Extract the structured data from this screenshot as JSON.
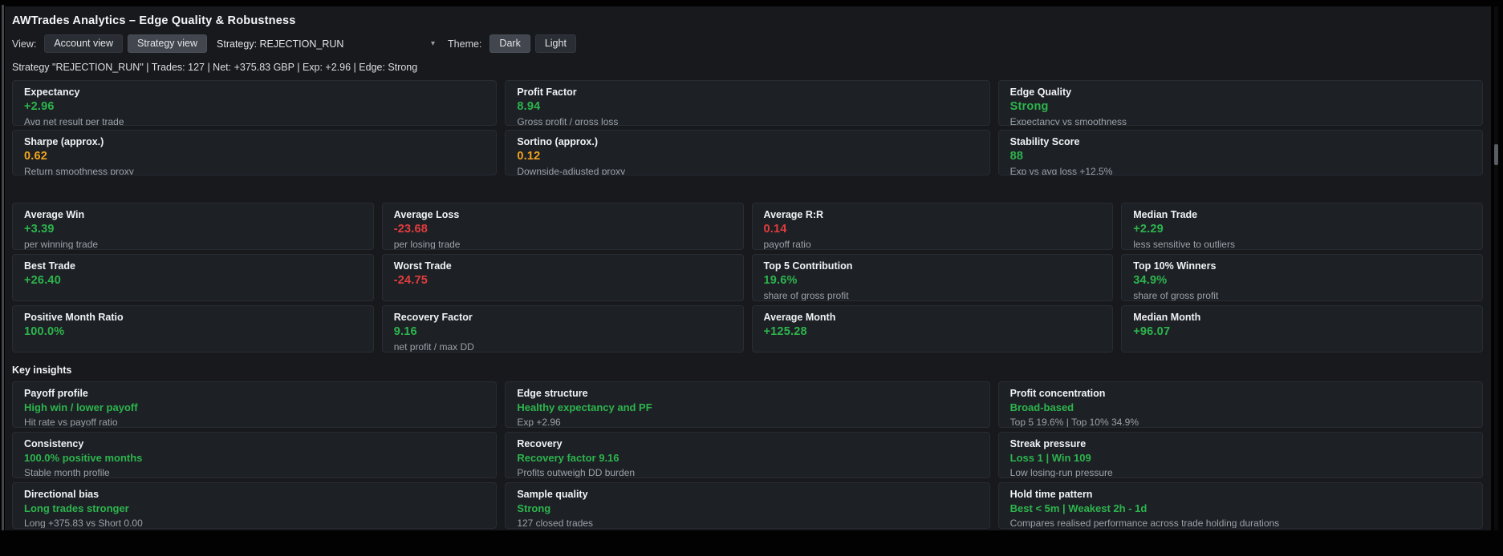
{
  "app": {
    "title": "AWTrades Analytics – Edge Quality & Robustness"
  },
  "colors": {
    "green": "#2db44c",
    "orange": "#f2a41b",
    "red": "#e23c3c"
  },
  "controls": {
    "view_label": "View:",
    "view_buttons": [
      {
        "label": "Account view",
        "active": false
      },
      {
        "label": "Strategy view",
        "active": true
      }
    ],
    "strategy_select": {
      "label": "Strategy: REJECTION_RUN",
      "caret": "▾"
    },
    "theme_label": "Theme:",
    "theme_buttons": [
      {
        "label": "Dark",
        "active": true
      },
      {
        "label": "Light",
        "active": false
      }
    ]
  },
  "status_line": "Strategy \"REJECTION_RUN\" | Trades: 127 | Net: +375.83 GBP | Exp: +2.96 | Edge: Strong",
  "summary_cards": [
    {
      "title": "Expectancy",
      "value": "+2.96",
      "tone": "green",
      "sub": "Avg net result per trade"
    },
    {
      "title": "Profit Factor",
      "value": "8.94",
      "tone": "green",
      "sub": "Gross profit / gross loss"
    },
    {
      "title": "Edge Quality",
      "value": "Strong",
      "tone": "green",
      "sub": "Expectancy vs smoothness"
    },
    {
      "title": "Sharpe (approx.)",
      "value": "0.62",
      "tone": "orange",
      "sub": "Return smoothness proxy"
    },
    {
      "title": "Sortino (approx.)",
      "value": "0.12",
      "tone": "orange",
      "sub": "Downside-adjusted proxy"
    },
    {
      "title": "Stability Score",
      "value": "88",
      "tone": "green",
      "sub": "Exp vs avg loss +12.5%"
    }
  ],
  "metric_cards": [
    {
      "title": "Average Win",
      "value": "+3.39",
      "tone": "green",
      "sub": "per winning trade"
    },
    {
      "title": "Average Loss",
      "value": "-23.68",
      "tone": "red",
      "sub": "per losing trade"
    },
    {
      "title": "Average R:R",
      "value": "0.14",
      "tone": "red",
      "sub": "payoff ratio"
    },
    {
      "title": "Median Trade",
      "value": "+2.29",
      "tone": "green",
      "sub": "less sensitive to outliers"
    },
    {
      "title": "Best Trade",
      "value": "+26.40",
      "tone": "green",
      "sub": ""
    },
    {
      "title": "Worst Trade",
      "value": "-24.75",
      "tone": "red",
      "sub": ""
    },
    {
      "title": "Top 5 Contribution",
      "value": "19.6%",
      "tone": "green",
      "sub": "share of gross profit"
    },
    {
      "title": "Top 10% Winners",
      "value": "34.9%",
      "tone": "green",
      "sub": "share of gross profit"
    },
    {
      "title": "Positive Month Ratio",
      "value": "100.0%",
      "tone": "green",
      "sub": ""
    },
    {
      "title": "Recovery Factor",
      "value": "9.16",
      "tone": "green",
      "sub": "net profit / max DD"
    },
    {
      "title": "Average Month",
      "value": "+125.28",
      "tone": "green",
      "sub": ""
    },
    {
      "title": "Median Month",
      "value": "+96.07",
      "tone": "green",
      "sub": ""
    }
  ],
  "insights": {
    "section_title": "Key insights",
    "cards": [
      {
        "title": "Payoff profile",
        "headline": "High win / lower payoff",
        "sub": "Hit rate vs payoff ratio"
      },
      {
        "title": "Edge structure",
        "headline": "Healthy expectancy and PF",
        "sub": "Exp +2.96"
      },
      {
        "title": "Profit concentration",
        "headline": "Broad-based",
        "sub": "Top 5 19.6% | Top 10% 34.9%"
      },
      {
        "title": "Consistency",
        "headline": "100.0% positive months",
        "sub": "Stable month profile"
      },
      {
        "title": "Recovery",
        "headline": "Recovery factor 9.16",
        "sub": "Profits outweigh DD burden"
      },
      {
        "title": "Streak pressure",
        "headline": "Loss 1 | Win 109",
        "sub": "Low losing-run pressure"
      },
      {
        "title": "Directional bias",
        "headline": "Long trades stronger",
        "sub": "Long +375.83 vs Short 0.00"
      },
      {
        "title": "Sample quality",
        "headline": "Strong",
        "sub": "127 closed trades"
      },
      {
        "title": "Hold time pattern",
        "headline": "Best < 5m | Weakest 2h - 1d",
        "sub": "Compares realised performance across trade holding durations"
      }
    ]
  }
}
